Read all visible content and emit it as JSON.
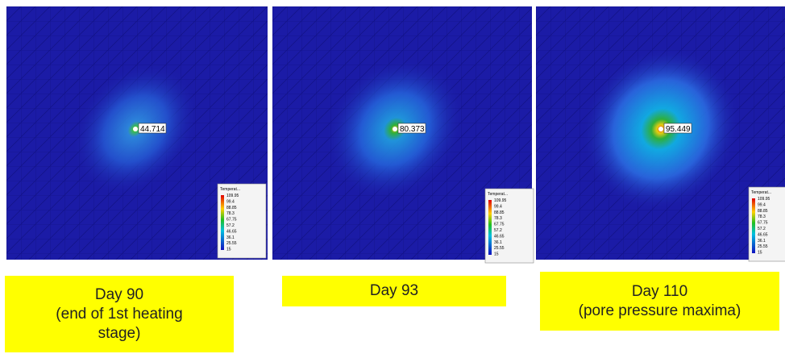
{
  "panels": [
    {
      "probe_value": "44.714",
      "legend": {
        "title": "Temperat...",
        "values": [
          "109.95",
          "99.4",
          "88.85",
          "78.3",
          "67.75",
          "57.2",
          "46.65",
          "36.1",
          "25.55",
          "15"
        ]
      },
      "caption": [
        "Day 90",
        "(end of 1st heating",
        "stage)"
      ]
    },
    {
      "probe_value": "80.373",
      "legend": {
        "title": "Temperat...",
        "values": [
          "109.95",
          "99.4",
          "88.85",
          "78.3",
          "67.75",
          "57.2",
          "46.65",
          "36.1",
          "25.55",
          "15"
        ]
      },
      "caption": [
        "Day 93"
      ]
    },
    {
      "probe_value": "95.449",
      "legend": {
        "title": "Temperat...",
        "values": [
          "109.95",
          "99.4",
          "88.85",
          "78.3",
          "67.75",
          "57.2",
          "46.65",
          "36.1",
          "25.55",
          "15"
        ]
      },
      "caption": [
        "Day 110",
        "(pore pressure maxima)"
      ]
    }
  ]
}
